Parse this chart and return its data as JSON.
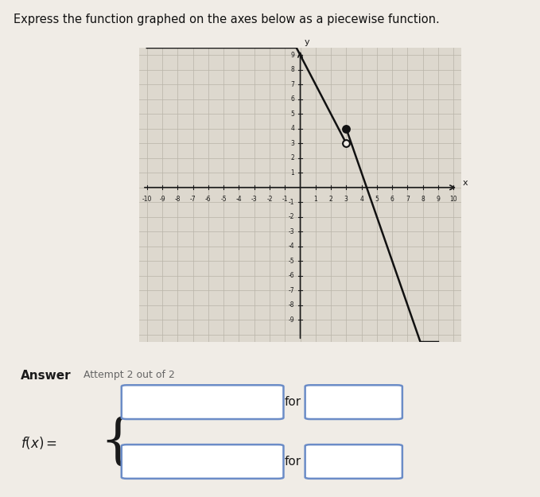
{
  "title": "Express the function graphed on the axes below as a piecewise function.",
  "background_color": "#f0ece6",
  "graph_bg_color": "#ddd8ce",
  "grid_color": "#b8b4a8",
  "axis_color": "#1a1a1a",
  "xlim": [
    -10.5,
    10.5
  ],
  "ylim": [
    -10.5,
    9.5
  ],
  "xtick_vals": [
    -10,
    -9,
    -8,
    -7,
    -6,
    -5,
    -4,
    -3,
    -2,
    -1,
    1,
    2,
    3,
    4,
    5,
    6,
    7,
    8,
    9,
    10
  ],
  "ytick_vals": [
    -9,
    -8,
    -7,
    -6,
    -5,
    -4,
    -3,
    -2,
    -1,
    1,
    2,
    3,
    4,
    5,
    6,
    7,
    8,
    9
  ],
  "piece1": {
    "x_start": -10,
    "x_end": 3,
    "slope": -2,
    "intercept": 9,
    "open_end_x": 3,
    "open_end_y": 3,
    "line_color": "#111111"
  },
  "piece2": {
    "x_start": 3,
    "x_end": 9,
    "slope": -3,
    "intercept": 13,
    "filled_start_x": 3,
    "filled_start_y": 4,
    "line_color": "#111111"
  },
  "answer_label": "Answer",
  "attempt_label": "Attempt 2 out of 2",
  "for_label": "for",
  "dot_size": 40,
  "open_dot_facecolor": "#f0ece6",
  "dot_edge_color": "#111111",
  "answer_bg": "#ebe5de",
  "box_edge_color": "#6b8cc7",
  "tick_fontsize": 5.5
}
